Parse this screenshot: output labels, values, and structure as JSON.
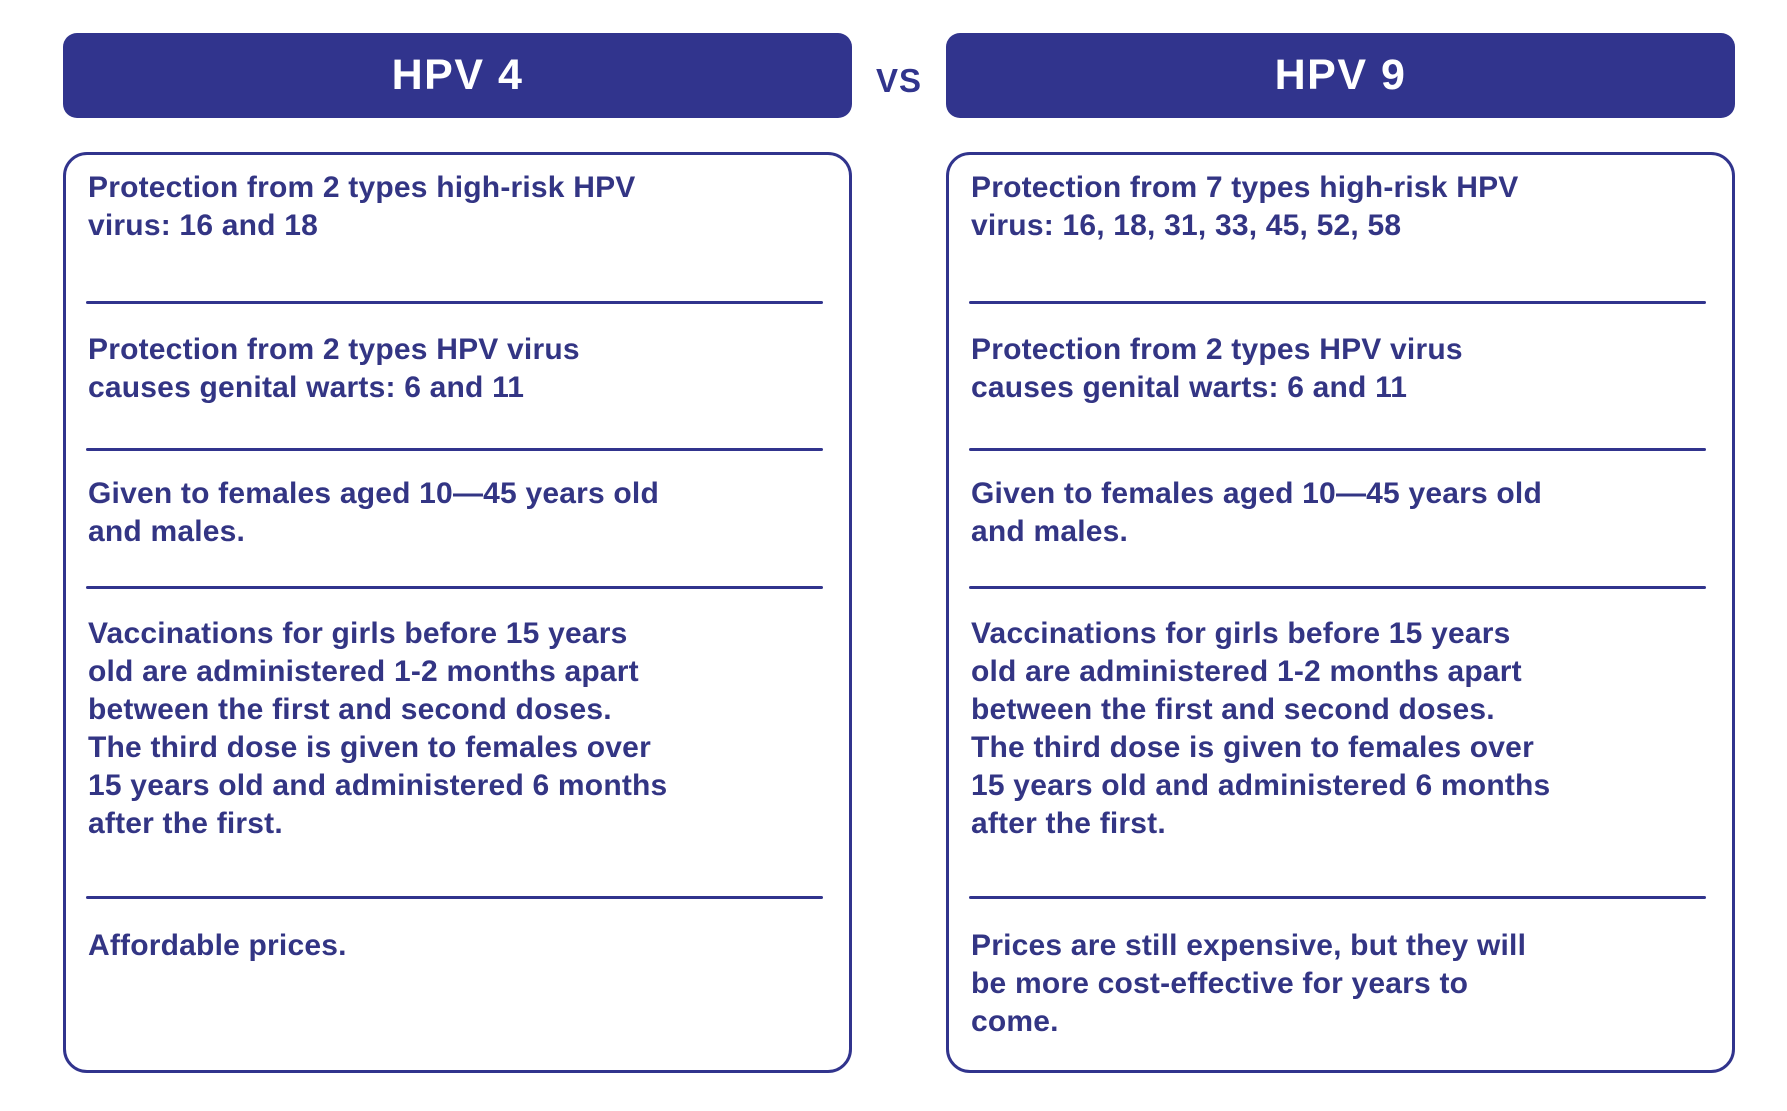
{
  "comparison": {
    "vs_label": "VS",
    "left": {
      "title": "HPV 4",
      "rows": [
        "Protection from 2 types high-risk HPV\nvirus: 16 and 18",
        "Protection from 2 types HPV virus\ncauses genital warts: 6 and 11",
        "Given to females aged 10—45 years old\nand males.",
        "Vaccinations for girls before 15 years\nold are administered 1-2 months apart\nbetween the first and second doses.\nThe third dose is given to females over\n15 years old and administered 6 months\nafter the first.",
        "Affordable prices."
      ]
    },
    "right": {
      "title": "HPV 9",
      "rows": [
        "Protection from 7 types high-risk HPV\nvirus: 16, 18, 31, 33, 45, 52, 58",
        "Protection from 2 types HPV virus\ncauses genital warts: 6 and 11",
        "Given to females aged 10—45 years old\nand males.",
        "Vaccinations for girls before 15 years\nold are administered 1-2 months apart\nbetween the first and second doses.\nThe third dose is given to females over\n15 years old and administered 6 months\nafter the first.",
        "Prices are still expensive, but they will\nbe more cost-effective for years to\ncome."
      ]
    }
  },
  "colors": {
    "primary": "#31348D",
    "text": "#333584",
    "header_text": "#FFFFFF",
    "background": "#FFFFFF"
  }
}
